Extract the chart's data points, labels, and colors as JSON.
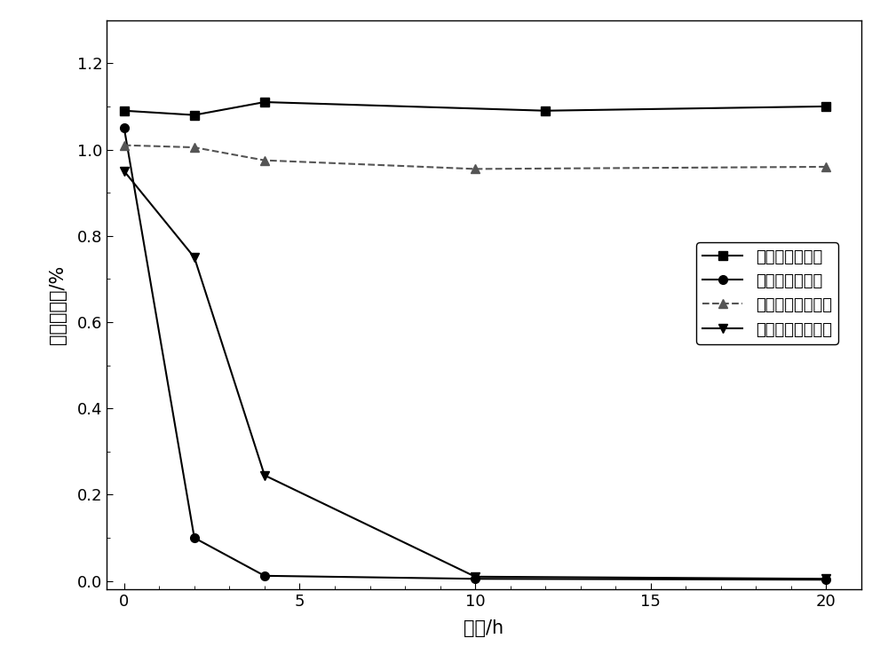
{
  "series": [
    {
      "label": "游离体系空白组",
      "x": [
        0,
        2,
        4,
        12,
        20
      ],
      "y": [
        1.09,
        1.08,
        1.11,
        1.09,
        1.1
      ],
      "marker": "s",
      "linestyle": "-",
      "color": "#000000",
      "markersize": 7
    },
    {
      "label": "游离体系实验组",
      "x": [
        0,
        2,
        4,
        10,
        20
      ],
      "y": [
        1.05,
        0.1,
        0.012,
        0.005,
        0.003
      ],
      "marker": "o",
      "linestyle": "-",
      "color": "#000000",
      "markersize": 7
    },
    {
      "label": "固定化体系空白组",
      "x": [
        0,
        2,
        4,
        10,
        20
      ],
      "y": [
        1.01,
        1.005,
        0.975,
        0.955,
        0.96
      ],
      "marker": "^",
      "linestyle": "--",
      "color": "#555555",
      "markersize": 7
    },
    {
      "label": "固定化体系实验组",
      "x": [
        0,
        2,
        4,
        10,
        20
      ],
      "y": [
        0.95,
        0.75,
        0.245,
        0.01,
        0.005
      ],
      "marker": "v",
      "linestyle": "-",
      "color": "#000000",
      "markersize": 7
    }
  ],
  "xlabel": "时间/h",
  "ylabel": "苯酚残留率/%",
  "xlim": [
    -0.5,
    21.0
  ],
  "ylim": [
    -0.02,
    1.3
  ],
  "xticks": [
    0,
    5,
    10,
    15,
    20
  ],
  "yticks": [
    0.0,
    0.2,
    0.4,
    0.6,
    0.8,
    1.0,
    1.2
  ],
  "figure_size": [
    10.0,
    7.55
  ],
  "dpi": 100
}
